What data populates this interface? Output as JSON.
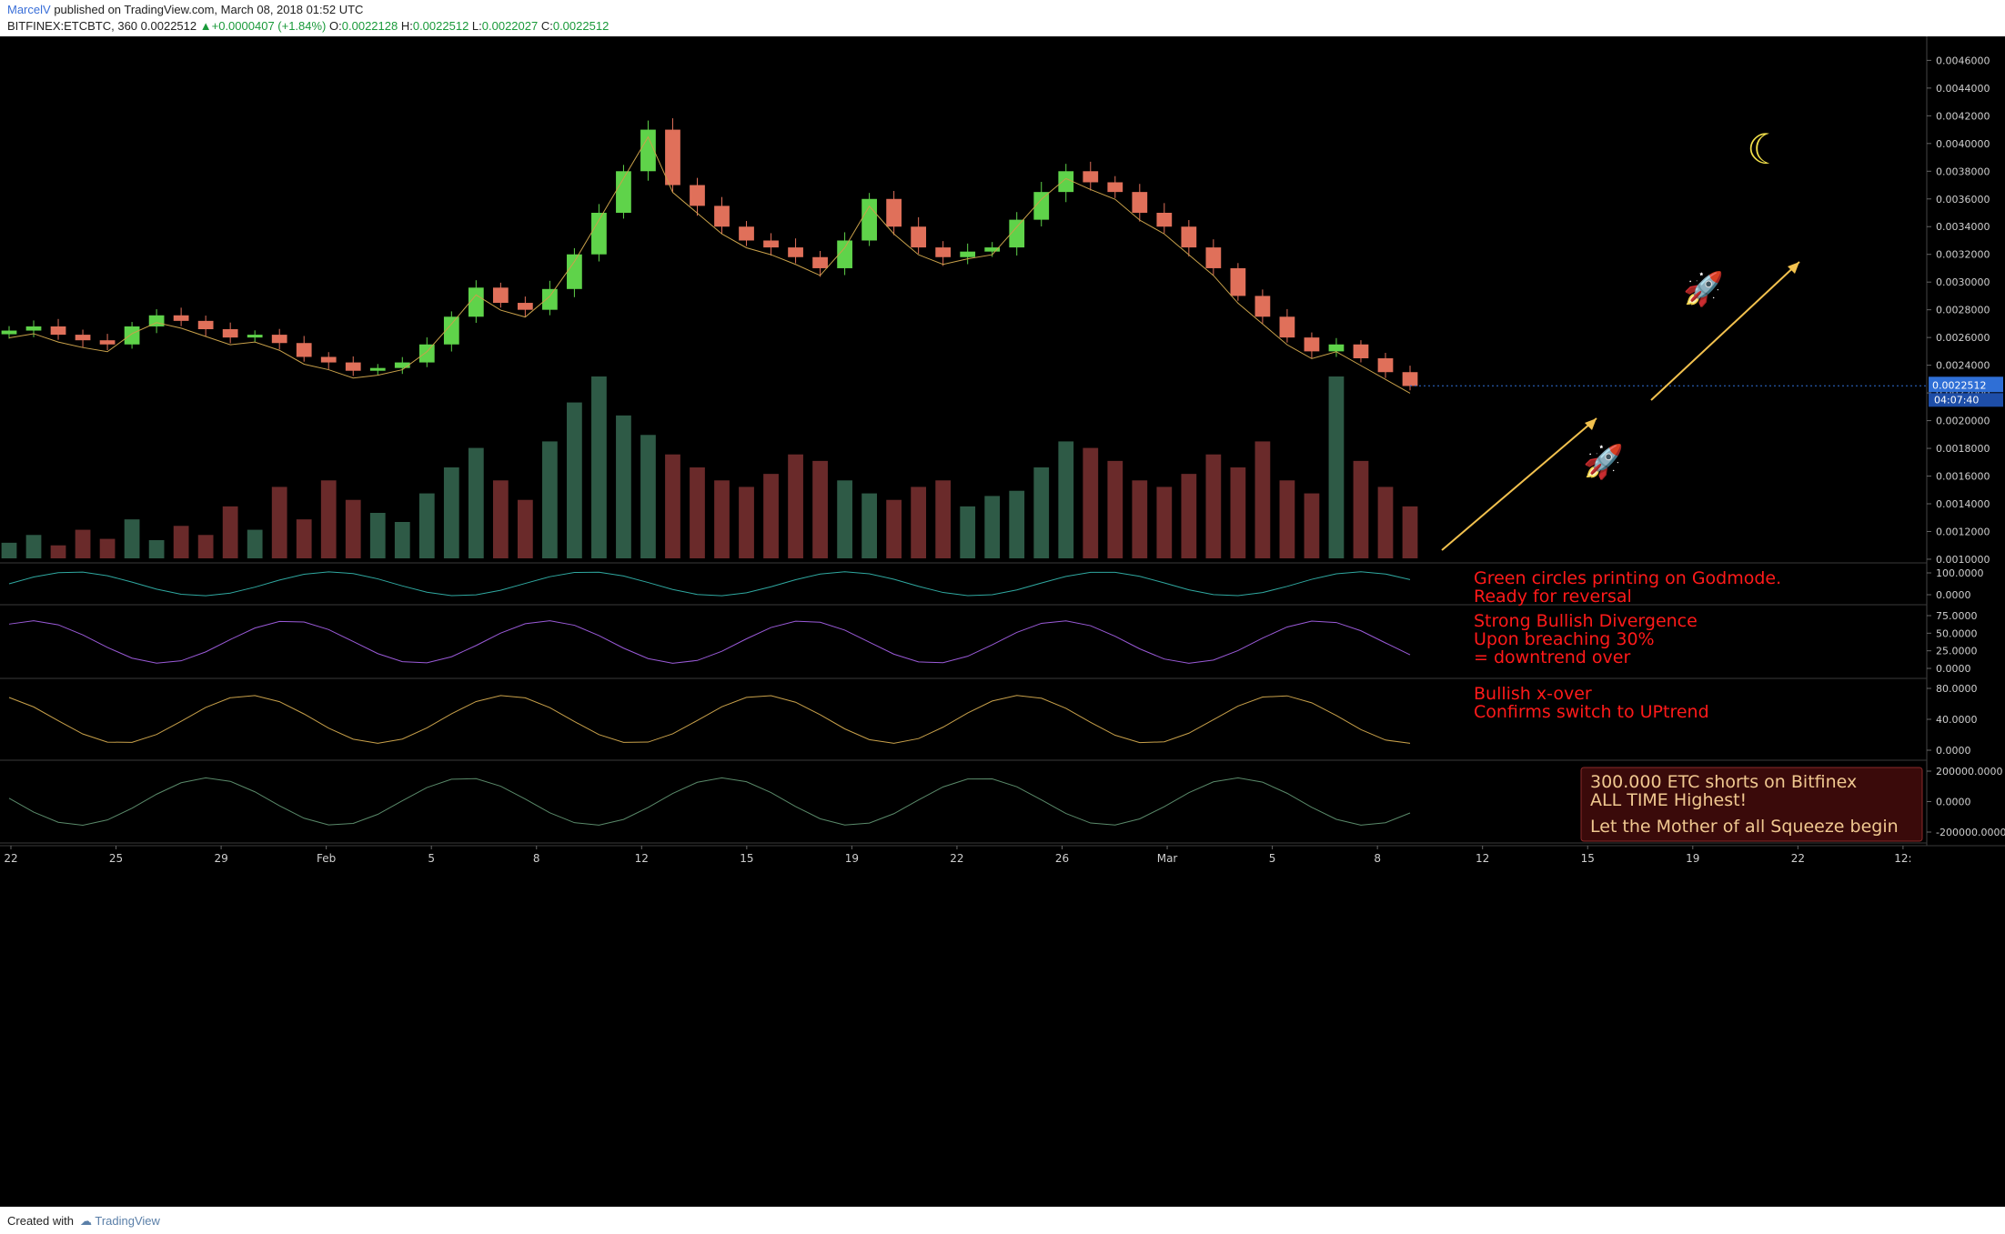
{
  "header": {
    "author": "MarcelV",
    "published": "published on TradingView.com, March 08, 2018 01:52 UTC",
    "symbol": "BITFINEX:ETCBTC, 360",
    "last": "0.0022512",
    "change": "+0.0000407 (+1.84%)",
    "o_label": "O:",
    "o_val": "0.0022128",
    "h_label": "H:",
    "h_val": "0.0022512",
    "l_label": "L:",
    "l_val": "0.0022027",
    "c_label": "C:",
    "c_val": "0.0022512"
  },
  "footer": {
    "created": "Created with",
    "brand": "TradingView"
  },
  "colors": {
    "background": "#000000",
    "bull": "#5fd34a",
    "bear": "#e0705a",
    "annotation": "#ff1a1a",
    "arrow": "#f2c14e",
    "price_tag": "#2f6fd6"
  },
  "chart_data": [
    {
      "type": "candlestick",
      "panel": "price",
      "y_unit": "BTC",
      "ylim": [
        0.00098,
        0.00476
      ],
      "y_ticks": [
        "0.0046000",
        "0.0044000",
        "0.0042000",
        "0.0040000",
        "0.0038000",
        "0.0036000",
        "0.0034000",
        "0.0032000",
        "0.0030000",
        "0.0028000",
        "0.0026000",
        "0.0024000",
        "0.0022000",
        "0.0020000",
        "0.0018000",
        "0.0016000",
        "0.0014000",
        "0.0012000",
        "0.0010000"
      ],
      "x_ticks": [
        "22",
        "25",
        "29",
        "Feb",
        "5",
        "8",
        "12",
        "15",
        "19",
        "22",
        "26",
        "Mar",
        "5",
        "8",
        "12",
        "15",
        "19",
        "22",
        "12:"
      ],
      "last_price": "0.0022512",
      "countdown": "04:07:40",
      "close_path": [
        0.00265,
        0.00268,
        0.00262,
        0.00258,
        0.00255,
        0.00268,
        0.00276,
        0.00272,
        0.00266,
        0.0026,
        0.00262,
        0.00256,
        0.00246,
        0.00242,
        0.00236,
        0.00238,
        0.00242,
        0.00255,
        0.00275,
        0.00296,
        0.00285,
        0.0028,
        0.00295,
        0.0032,
        0.0035,
        0.0038,
        0.0041,
        0.0037,
        0.00355,
        0.0034,
        0.0033,
        0.00325,
        0.00318,
        0.0031,
        0.0033,
        0.0036,
        0.0034,
        0.00325,
        0.00318,
        0.00322,
        0.00325,
        0.00345,
        0.00365,
        0.0038,
        0.00372,
        0.00365,
        0.0035,
        0.0034,
        0.00325,
        0.0031,
        0.0029,
        0.00275,
        0.0026,
        0.0025,
        0.00255,
        0.00245,
        0.00235,
        0.00225
      ],
      "volume": [
        12,
        18,
        10,
        22,
        15,
        30,
        14,
        25,
        18,
        40,
        22,
        55,
        30,
        60,
        45,
        35,
        28,
        50,
        70,
        85,
        60,
        45,
        90,
        120,
        140,
        110,
        95,
        80,
        70,
        60,
        55,
        65,
        80,
        75,
        60,
        50,
        45,
        55,
        60,
        40,
        48,
        52,
        70,
        90,
        85,
        75,
        60,
        55,
        65,
        80,
        70,
        90,
        60,
        50,
        140,
        75,
        55,
        40
      ],
      "annotations": []
    },
    {
      "type": "line",
      "panel": "oscillator-godmode",
      "y_ticks": [
        "100.0000",
        "0.0000"
      ],
      "annotations": [
        "Green circles printing on Godmode.",
        "Ready for reversal"
      ]
    },
    {
      "type": "line",
      "panel": "rsi",
      "y_ticks": [
        "75.0000",
        "50.0000",
        "25.0000",
        "0.0000"
      ],
      "annotations": [
        "Strong Bullish Divergence",
        "Upon breaching 30%",
        " = downtrend over"
      ]
    },
    {
      "type": "line",
      "panel": "trend-crossover",
      "y_ticks": [
        "80.0000",
        "40.0000",
        "0.0000"
      ],
      "annotations": [
        "Bullish x-over",
        "Confirms switch to UPtrend"
      ]
    },
    {
      "type": "area",
      "panel": "longs-shorts",
      "y_ticks": [
        "200000.0000",
        "0.0000",
        "-200000.0000"
      ],
      "annotations": [
        "300.000 ETC shorts on Bitfinex",
        "ALL TIME Highest!",
        "Let the Mother of all Squeeze begin"
      ]
    }
  ]
}
